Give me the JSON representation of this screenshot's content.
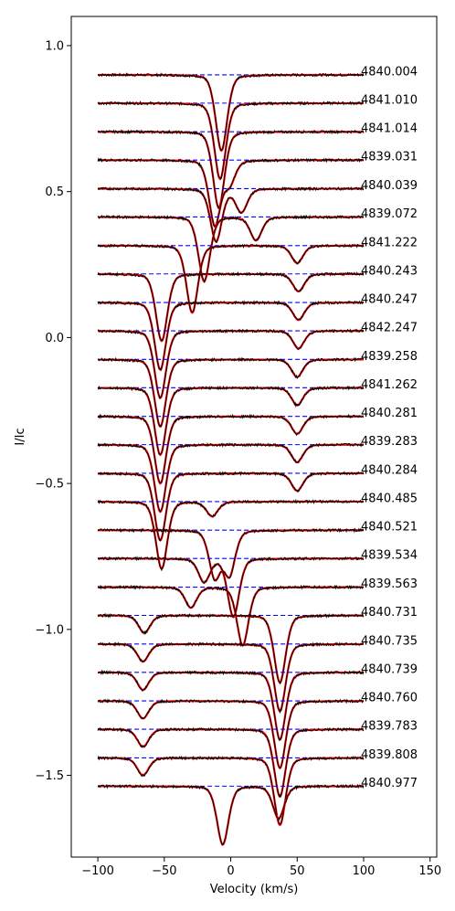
{
  "chart_data": {
    "type": "line",
    "title": "",
    "xlabel": "Velocity (km/s)",
    "ylabel": "I/Ic",
    "xlim": [
      -120,
      155
    ],
    "ylim": [
      -1.78,
      1.1
    ],
    "x_ticks": [
      -100,
      -50,
      0,
      50,
      100,
      150
    ],
    "x_tick_labels": [
      "−100",
      "−50",
      "0",
      "50",
      "100",
      "150"
    ],
    "y_ticks": [
      1.0,
      0.5,
      0.0,
      -0.5,
      -1.0,
      -1.5
    ],
    "y_tick_labels": [
      "1.0",
      "0.5",
      "0.0",
      "−0.5",
      "−1.0",
      "−1.5"
    ],
    "velocity_range": [
      -100,
      100
    ],
    "continuum_step": -0.0975,
    "first_continuum": 0.9,
    "observed_color": "#000000",
    "model_color": "#ff0000",
    "continuum_color": "#0000ff",
    "grid": false,
    "series": [
      {
        "label": "4840.004",
        "continuum": 0.9,
        "lines": [
          {
            "v": -7,
            "depth": 0.26,
            "width": 4.5
          }
        ]
      },
      {
        "label": "4841.010",
        "continuum": 0.803,
        "lines": [
          {
            "v": -8,
            "depth": 0.26,
            "width": 4.5
          }
        ]
      },
      {
        "label": "4841.014",
        "continuum": 0.705,
        "lines": [
          {
            "v": -9,
            "depth": 0.26,
            "width": 4.5
          }
        ]
      },
      {
        "label": "4839.031",
        "continuum": 0.608,
        "lines": [
          {
            "v": -12,
            "depth": 0.22,
            "width": 4.5
          },
          {
            "v": -1,
            "depth": 0.08,
            "width": 4.5
          }
        ]
      },
      {
        "label": "4840.039",
        "continuum": 0.51,
        "lines": [
          {
            "v": -11,
            "depth": 0.18,
            "width": 4.5
          },
          {
            "v": 8,
            "depth": 0.08,
            "width": 4.5
          }
        ]
      },
      {
        "label": "4839.072",
        "continuum": 0.413,
        "lines": [
          {
            "v": -20,
            "depth": 0.22,
            "width": 4.5
          },
          {
            "v": 19,
            "depth": 0.08,
            "width": 4.5
          }
        ]
      },
      {
        "label": "4841.222",
        "continuum": 0.315,
        "lines": [
          {
            "v": -29,
            "depth": 0.23,
            "width": 4.5
          },
          {
            "v": 50,
            "depth": 0.06,
            "width": 4.5
          }
        ]
      },
      {
        "label": "4840.243",
        "continuum": 0.218,
        "lines": [
          {
            "v": -52,
            "depth": 0.23,
            "width": 4.5
          },
          {
            "v": 51,
            "depth": 0.06,
            "width": 4.5
          }
        ]
      },
      {
        "label": "4840.247",
        "continuum": 0.12,
        "lines": [
          {
            "v": -53,
            "depth": 0.23,
            "width": 4.5
          },
          {
            "v": 51,
            "depth": 0.06,
            "width": 4.5
          }
        ]
      },
      {
        "label": "4842.247",
        "continuum": 0.023,
        "lines": [
          {
            "v": -53,
            "depth": 0.23,
            "width": 4.5
          },
          {
            "v": 51,
            "depth": 0.06,
            "width": 4.5
          }
        ]
      },
      {
        "label": "4839.258",
        "continuum": -0.075,
        "lines": [
          {
            "v": -53,
            "depth": 0.23,
            "width": 4.5
          },
          {
            "v": 50,
            "depth": 0.06,
            "width": 4.5
          }
        ]
      },
      {
        "label": "4841.262",
        "continuum": -0.172,
        "lines": [
          {
            "v": -53,
            "depth": 0.23,
            "width": 4.5
          },
          {
            "v": 50,
            "depth": 0.06,
            "width": 4.5
          }
        ]
      },
      {
        "label": "4840.281",
        "continuum": -0.27,
        "lines": [
          {
            "v": -53,
            "depth": 0.23,
            "width": 4.5
          },
          {
            "v": 50,
            "depth": 0.06,
            "width": 4.5
          }
        ]
      },
      {
        "label": "4839.283",
        "continuum": -0.367,
        "lines": [
          {
            "v": -53,
            "depth": 0.23,
            "width": 4.5
          },
          {
            "v": 50,
            "depth": 0.06,
            "width": 4.5
          }
        ]
      },
      {
        "label": "4840.284",
        "continuum": -0.465,
        "lines": [
          {
            "v": -53,
            "depth": 0.23,
            "width": 4.5
          },
          {
            "v": 50,
            "depth": 0.06,
            "width": 4.5
          }
        ]
      },
      {
        "label": "4840.485",
        "continuum": -0.562,
        "lines": [
          {
            "v": -52,
            "depth": 0.23,
            "width": 4.5
          },
          {
            "v": -14,
            "depth": 0.05,
            "width": 4.5
          }
        ]
      },
      {
        "label": "4840.521",
        "continuum": -0.66,
        "lines": [
          {
            "v": -12,
            "depth": 0.16,
            "width": 4.5
          },
          {
            "v": -1,
            "depth": 0.15,
            "width": 4.5
          }
        ]
      },
      {
        "label": "4839.534",
        "continuum": -0.757,
        "lines": [
          {
            "v": -20,
            "depth": 0.08,
            "width": 4.5
          },
          {
            "v": 2,
            "depth": 0.2,
            "width": 4.5
          }
        ]
      },
      {
        "label": "4839.563",
        "continuum": -0.855,
        "lines": [
          {
            "v": -30,
            "depth": 0.07,
            "width": 4.5
          },
          {
            "v": 9,
            "depth": 0.2,
            "width": 4.5
          }
        ]
      },
      {
        "label": "4840.731",
        "continuum": -0.952,
        "lines": [
          {
            "v": -65,
            "depth": 0.06,
            "width": 4.5
          },
          {
            "v": 37,
            "depth": 0.23,
            "width": 4.5
          }
        ]
      },
      {
        "label": "4840.735",
        "continuum": -1.05,
        "lines": [
          {
            "v": -66,
            "depth": 0.06,
            "width": 4.5
          },
          {
            "v": 37,
            "depth": 0.23,
            "width": 4.5
          }
        ]
      },
      {
        "label": "4840.739",
        "continuum": -1.147,
        "lines": [
          {
            "v": -66,
            "depth": 0.06,
            "width": 4.5
          },
          {
            "v": 37,
            "depth": 0.23,
            "width": 4.5
          }
        ]
      },
      {
        "label": "4840.760",
        "continuum": -1.245,
        "lines": [
          {
            "v": -66,
            "depth": 0.06,
            "width": 4.5
          },
          {
            "v": 37,
            "depth": 0.23,
            "width": 4.5
          }
        ]
      },
      {
        "label": "4839.783",
        "continuum": -1.342,
        "lines": [
          {
            "v": -66,
            "depth": 0.06,
            "width": 4.5
          },
          {
            "v": 37,
            "depth": 0.23,
            "width": 4.5
          }
        ]
      },
      {
        "label": "4839.808",
        "continuum": -1.44,
        "lines": [
          {
            "v": -66,
            "depth": 0.06,
            "width": 4.5
          },
          {
            "v": 37,
            "depth": 0.23,
            "width": 4.5
          }
        ]
      },
      {
        "label": "4840.977",
        "continuum": -1.537,
        "lines": [
          {
            "v": -6,
            "depth": 0.2,
            "width": 4.5
          },
          {
            "v": 36,
            "depth": 0.11,
            "width": 4.5
          }
        ]
      }
    ]
  }
}
